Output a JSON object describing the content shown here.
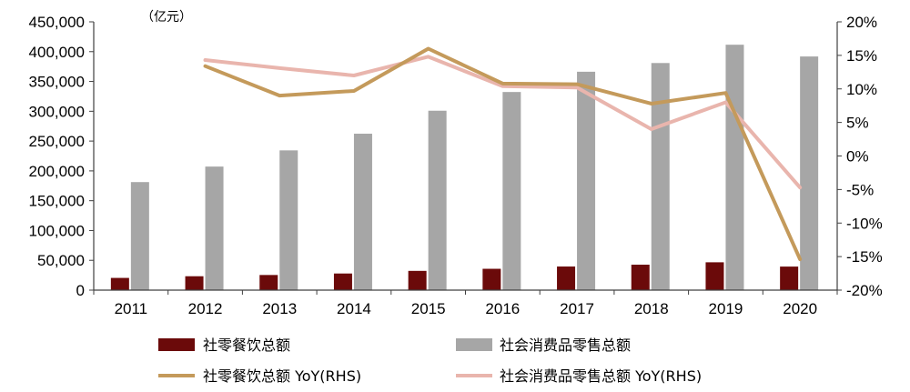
{
  "chart_data": {
    "type": "bar",
    "title": "",
    "unit_label": "（亿元）",
    "categories": [
      "2011",
      "2012",
      "2013",
      "2014",
      "2015",
      "2016",
      "2017",
      "2018",
      "2019",
      "2020"
    ],
    "y_left": {
      "range": [
        0,
        450000
      ],
      "ticks": [
        0,
        50000,
        100000,
        150000,
        200000,
        250000,
        300000,
        350000,
        400000,
        450000
      ],
      "tick_labels": [
        "0",
        "50,000",
        "100,000",
        "150,000",
        "200,000",
        "250,000",
        "300,000",
        "350,000",
        "400,000",
        "450,000"
      ]
    },
    "y_right": {
      "range": [
        -20,
        20
      ],
      "ticks": [
        -20,
        -15,
        -10,
        -5,
        0,
        5,
        10,
        15,
        20
      ],
      "tick_labels": [
        "-20%",
        "-15%",
        "-10%",
        "-5%",
        "0%",
        "5%",
        "10%",
        "15%",
        "20%"
      ]
    },
    "series": [
      {
        "name": "社零餐饮总额",
        "type": "bar",
        "axis": "left",
        "color": "#6b0a0a",
        "values": [
          20500,
          23300,
          25400,
          27900,
          32300,
          35800,
          39600,
          42700,
          46700,
          39500
        ]
      },
      {
        "name": "社会消费品零售总额",
        "type": "bar",
        "axis": "left",
        "color": "#a6a6a6",
        "values": [
          181200,
          207200,
          234400,
          262400,
          300900,
          332300,
          366300,
          380900,
          411600,
          391900
        ]
      },
      {
        "name": "社零餐饮总额 YoY(RHS)",
        "type": "line",
        "axis": "right",
        "color": "#c49a5b",
        "values": [
          null,
          13.4,
          9.0,
          9.7,
          16.0,
          10.8,
          10.7,
          7.8,
          9.4,
          -15.4
        ]
      },
      {
        "name": "社会消费品零售总额 YoY(RHS)",
        "type": "line",
        "axis": "right",
        "color": "#e9b5ad",
        "values": [
          null,
          14.3,
          13.1,
          12.0,
          14.8,
          10.4,
          10.2,
          4.0,
          8.0,
          -4.7
        ]
      }
    ],
    "grid": false,
    "legend_position": "bottom"
  }
}
